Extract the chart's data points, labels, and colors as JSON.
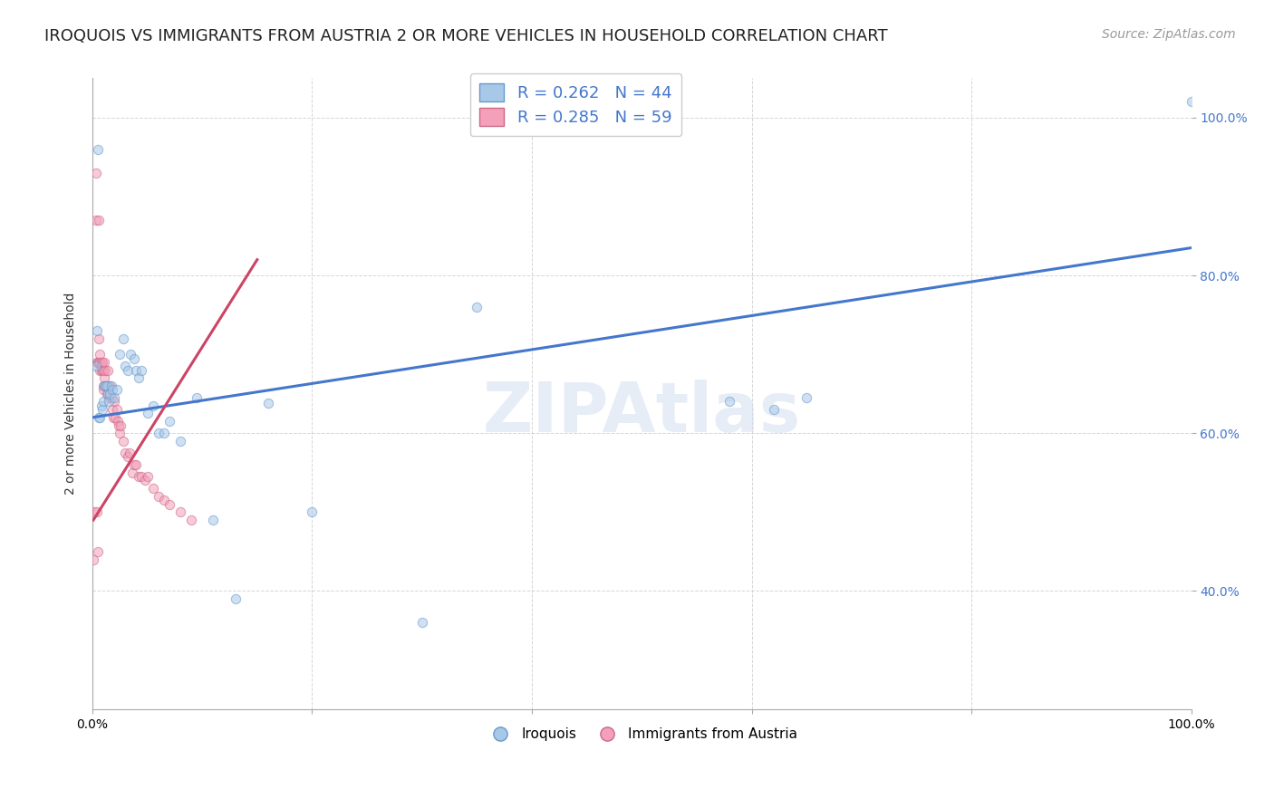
{
  "title": "IROQUOIS VS IMMIGRANTS FROM AUSTRIA 2 OR MORE VEHICLES IN HOUSEHOLD CORRELATION CHART",
  "source": "Source: ZipAtlas.com",
  "ylabel": "2 or more Vehicles in Household",
  "watermark": "ZIPAtlas",
  "blue_scatter_x": [
    0.003,
    0.004,
    0.005,
    0.006,
    0.007,
    0.008,
    0.009,
    0.01,
    0.011,
    0.012,
    0.013,
    0.014,
    0.015,
    0.016,
    0.017,
    0.018,
    0.02,
    0.022,
    0.025,
    0.028,
    0.03,
    0.032,
    0.035,
    0.038,
    0.04,
    0.042,
    0.045,
    0.05,
    0.055,
    0.06,
    0.065,
    0.07,
    0.08,
    0.095,
    0.11,
    0.13,
    0.16,
    0.2,
    0.3,
    0.58,
    0.62,
    0.65,
    0.35,
    1.0
  ],
  "blue_scatter_y": [
    0.685,
    0.73,
    0.96,
    0.62,
    0.62,
    0.635,
    0.63,
    0.64,
    0.66,
    0.66,
    0.66,
    0.65,
    0.64,
    0.65,
    0.66,
    0.655,
    0.645,
    0.655,
    0.7,
    0.72,
    0.685,
    0.68,
    0.7,
    0.695,
    0.68,
    0.67,
    0.68,
    0.625,
    0.635,
    0.6,
    0.6,
    0.615,
    0.59,
    0.645,
    0.49,
    0.39,
    0.638,
    0.5,
    0.36,
    0.64,
    0.63,
    0.645,
    0.76,
    1.02
  ],
  "pink_scatter_x": [
    0.001,
    0.002,
    0.003,
    0.003,
    0.004,
    0.004,
    0.005,
    0.005,
    0.006,
    0.006,
    0.006,
    0.007,
    0.007,
    0.007,
    0.008,
    0.008,
    0.008,
    0.009,
    0.009,
    0.01,
    0.01,
    0.01,
    0.011,
    0.011,
    0.012,
    0.012,
    0.013,
    0.013,
    0.014,
    0.015,
    0.015,
    0.016,
    0.017,
    0.018,
    0.019,
    0.02,
    0.021,
    0.022,
    0.023,
    0.024,
    0.025,
    0.026,
    0.028,
    0.03,
    0.032,
    0.034,
    0.036,
    0.038,
    0.04,
    0.042,
    0.045,
    0.048,
    0.05,
    0.055,
    0.06,
    0.065,
    0.07,
    0.08,
    0.09
  ],
  "pink_scatter_y": [
    0.44,
    0.5,
    0.93,
    0.87,
    0.5,
    0.69,
    0.45,
    0.69,
    0.87,
    0.69,
    0.72,
    0.68,
    0.69,
    0.7,
    0.685,
    0.68,
    0.69,
    0.69,
    0.68,
    0.66,
    0.68,
    0.655,
    0.67,
    0.69,
    0.66,
    0.68,
    0.66,
    0.65,
    0.68,
    0.66,
    0.645,
    0.66,
    0.645,
    0.63,
    0.62,
    0.64,
    0.62,
    0.63,
    0.615,
    0.61,
    0.6,
    0.61,
    0.59,
    0.575,
    0.57,
    0.575,
    0.55,
    0.56,
    0.56,
    0.545,
    0.545,
    0.54,
    0.545,
    0.53,
    0.52,
    0.515,
    0.51,
    0.5,
    0.49
  ],
  "blue_line_x": [
    0.0,
    1.0
  ],
  "blue_line_y": [
    0.62,
    0.835
  ],
  "pink_line_x": [
    0.001,
    0.15
  ],
  "pink_line_y": [
    0.49,
    0.82
  ],
  "xlim": [
    0.0,
    1.0
  ],
  "ylim": [
    0.25,
    1.05
  ],
  "xticks": [
    0.0,
    0.2,
    0.4,
    0.6,
    0.8,
    1.0
  ],
  "yticks": [
    0.4,
    0.6,
    0.8,
    1.0
  ],
  "scatter_size": 55,
  "scatter_alpha": 0.55,
  "scatter_edge_width": 0.8,
  "blue_color": "#a8c8e8",
  "blue_edge_color": "#6699cc",
  "pink_color": "#f4a0b8",
  "pink_edge_color": "#cc6688",
  "blue_line_color": "#4477cc",
  "pink_line_color": "#cc4466",
  "grid_color": "#cccccc",
  "background_color": "#ffffff",
  "title_fontsize": 13,
  "source_fontsize": 10,
  "ylabel_fontsize": 10,
  "tick_fontsize": 10,
  "legend_fontsize": 13,
  "watermark_color": "#c8d8ee",
  "watermark_fontsize": 55,
  "watermark_alpha": 0.45,
  "legend1_R1": "R = 0.262",
  "legend1_N1": "N = 44",
  "legend1_R2": "R = 0.285",
  "legend1_N2": "N = 59",
  "legend_bottom_1": "Iroquois",
  "legend_bottom_2": "Immigrants from Austria"
}
